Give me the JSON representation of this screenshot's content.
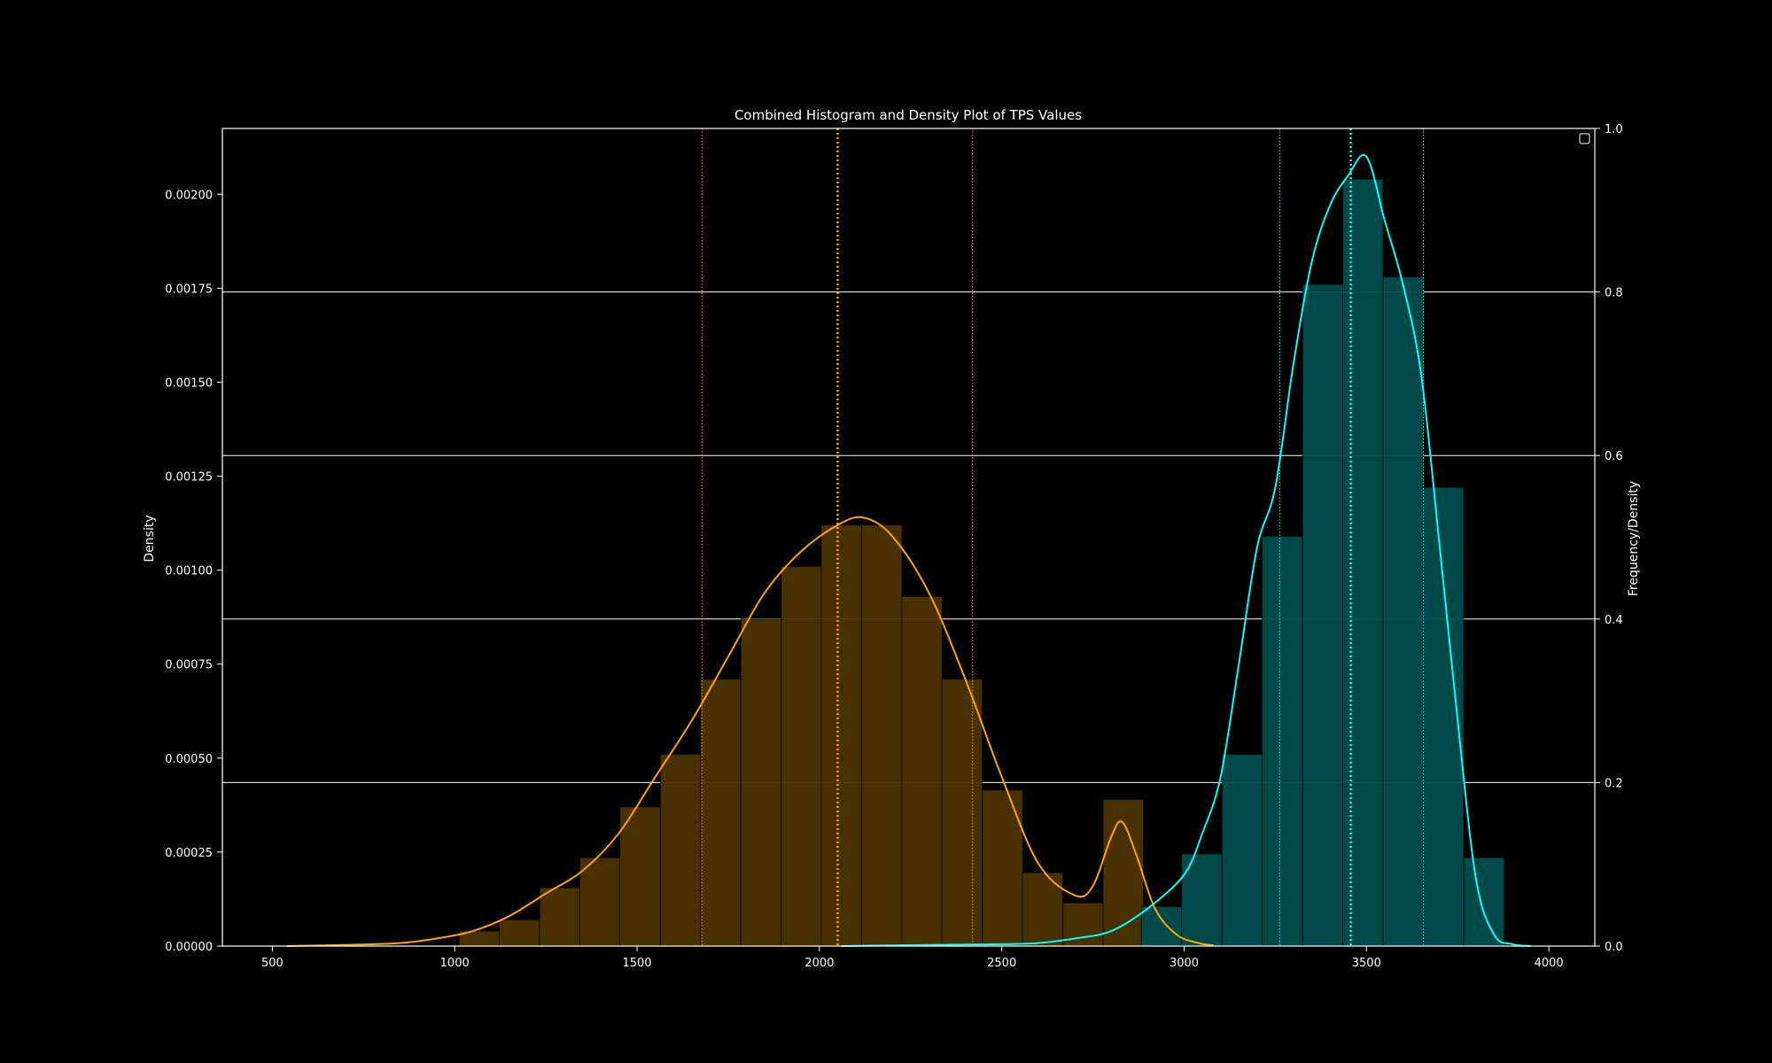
{
  "chart_data": {
    "type": "histogram",
    "title": "Combined Histogram and Density Plot of TPS Values",
    "ylabel_left": "Density",
    "ylabel_right": "Frequency/Density",
    "xlim": [
      363,
      4126
    ],
    "ylim_left": [
      0,
      0.002175
    ],
    "ylim_right": [
      0,
      1.0
    ],
    "xticks": [
      500,
      1000,
      1500,
      2000,
      2500,
      3000,
      3500,
      4000
    ],
    "yticks_left": [
      "0.00000",
      "0.00025",
      "0.00050",
      "0.00075",
      "0.00100",
      "0.00125",
      "0.00150",
      "0.00175",
      "0.00200"
    ],
    "yticks_right": [
      "0.0",
      "0.2",
      "0.4",
      "0.6",
      "0.8",
      "1.0"
    ],
    "grid": "right-axis horizontal lines",
    "legend": "top-right (empty)",
    "bin_width": 110.4,
    "series": [
      {
        "color": "#FFA500",
        "fill": "#4d3300",
        "bin_starts": [
          1012,
          1122,
          1233,
          1343,
          1453,
          1564,
          1674,
          1785,
          1895,
          2005,
          2116,
          2226,
          2336,
          2447,
          2557,
          2668,
          2778,
          2888
        ],
        "bin_heights": [
          4e-05,
          7e-05,
          0.000155,
          0.000235,
          0.00037,
          0.00051,
          0.00071,
          0.00087,
          0.00101,
          0.00112,
          0.00112,
          0.00093,
          0.00071,
          0.000415,
          0.000195,
          0.000115,
          0.00039,
          3e-05
        ],
        "kde": [
          [
            540,
            0
          ],
          [
            700,
            3e-06
          ],
          [
            850,
            8e-06
          ],
          [
            950,
            2e-05
          ],
          [
            1050,
            4e-05
          ],
          [
            1150,
            8e-05
          ],
          [
            1250,
            0.00014
          ],
          [
            1350,
            0.0002
          ],
          [
            1450,
            0.0003
          ],
          [
            1550,
            0.00045
          ],
          [
            1650,
            0.0006
          ],
          [
            1750,
            0.00077
          ],
          [
            1850,
            0.00094
          ],
          [
            1950,
            0.00105
          ],
          [
            2050,
            0.00112
          ],
          [
            2120,
            0.00114
          ],
          [
            2200,
            0.00109
          ],
          [
            2300,
            0.00094
          ],
          [
            2400,
            0.00071
          ],
          [
            2500,
            0.00045
          ],
          [
            2600,
            0.00022
          ],
          [
            2700,
            0.000135
          ],
          [
            2750,
            0.00016
          ],
          [
            2800,
            0.00029
          ],
          [
            2830,
            0.00033
          ],
          [
            2870,
            0.00024
          ],
          [
            2920,
            0.0001
          ],
          [
            2980,
            3e-05
          ],
          [
            3040,
            8e-06
          ],
          [
            3080,
            2e-06
          ]
        ],
        "mean": 2050,
        "std_lines": [
          1678,
          2420
        ]
      },
      {
        "color": "#00FFFF",
        "fill": "#004d4d",
        "bin_starts": [
          2883,
          2993,
          3104,
          3214,
          3325,
          3435,
          3546,
          3656,
          3767
        ],
        "bin_heights": [
          0.000105,
          0.000245,
          0.00051,
          0.00109,
          0.00176,
          0.00204,
          0.00178,
          0.00122,
          0.000235
        ],
        "kde": [
          [
            2060,
            0
          ],
          [
            2300,
            3e-06
          ],
          [
            2500,
            5e-06
          ],
          [
            2600,
            8e-06
          ],
          [
            2700,
            2e-05
          ],
          [
            2800,
            4e-05
          ],
          [
            2900,
            0.0001
          ],
          [
            3000,
            0.00019
          ],
          [
            3050,
            0.0003
          ],
          [
            3100,
            0.00045
          ],
          [
            3150,
            0.00075
          ],
          [
            3200,
            0.00106
          ],
          [
            3250,
            0.00122
          ],
          [
            3300,
            0.00155
          ],
          [
            3350,
            0.00182
          ],
          [
            3400,
            0.00197
          ],
          [
            3450,
            0.00205
          ],
          [
            3500,
            0.0021
          ],
          [
            3550,
            0.00193
          ],
          [
            3600,
            0.00176
          ],
          [
            3650,
            0.00152
          ],
          [
            3700,
            0.00107
          ],
          [
            3750,
            0.0006
          ],
          [
            3800,
            0.00018
          ],
          [
            3850,
            3e-05
          ],
          [
            3900,
            5e-06
          ],
          [
            3950,
            0
          ]
        ],
        "mean": 3457,
        "std_lines": [
          3262,
          3656
        ]
      }
    ]
  }
}
